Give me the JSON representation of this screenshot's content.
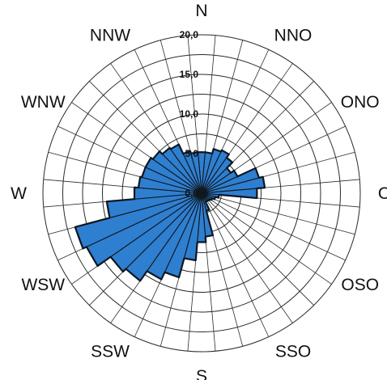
{
  "chart_data": {
    "type": "polar-bar",
    "title": "",
    "directions": [
      "N",
      "NNO",
      "ONO",
      "O",
      "OSO",
      "SSO",
      "S",
      "SSW",
      "WSW",
      "W",
      "WNW",
      "NNW"
    ],
    "radial_ticks": [
      "0,0",
      "5,0",
      "10,0",
      "15,0",
      "20,0"
    ],
    "rmax": 20,
    "sector_count": 36,
    "sector_start_deg": 0,
    "values": [
      5.2,
      5.2,
      5.8,
      6.0,
      5.5,
      4.5,
      5.0,
      7.5,
      8.0,
      7.0,
      2.2,
      1.8,
      1.5,
      1.3,
      1.2,
      1.2,
      2.3,
      5.5,
      6.2,
      8.5,
      11.0,
      12.0,
      13.5,
      14.0,
      16.0,
      16.5,
      12.0,
      8.5,
      8.0,
      7.8,
      7.8,
      7.5,
      7.0,
      6.8,
      5.5,
      5.2
    ],
    "colors": {
      "fill": "#2f7fd0",
      "edge": "#101820",
      "grid": "#2a2a2a",
      "text": "#111111"
    }
  }
}
